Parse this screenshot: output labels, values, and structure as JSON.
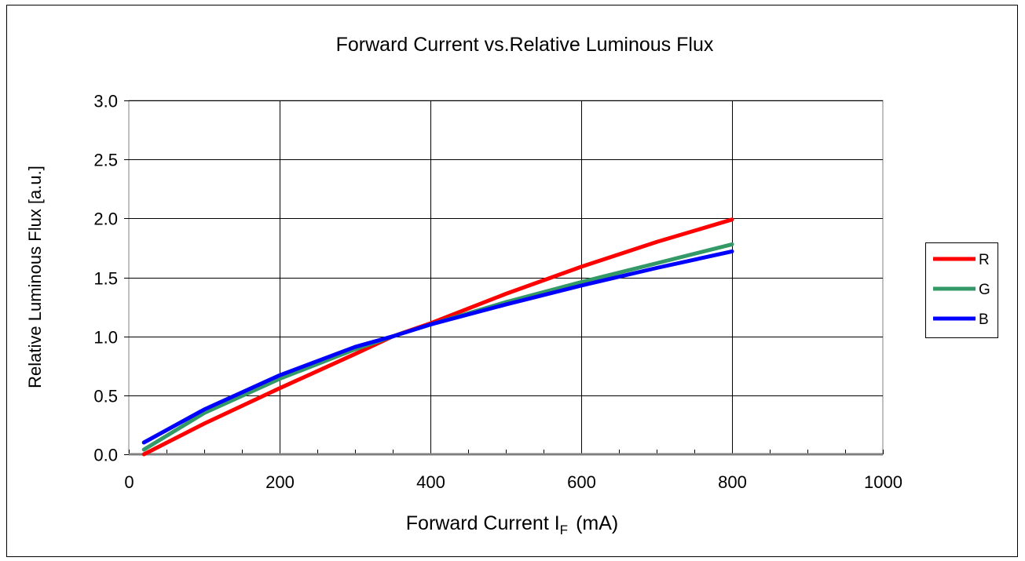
{
  "chart_data": {
    "type": "line",
    "title": "Forward Current vs.Relative Luminous Flux",
    "xlabel": {
      "main": "Forward Current I",
      "subscript": "F",
      "unit": "(mA)"
    },
    "ylabel": "Relative Luminous Flux [a.u.]",
    "xlim": [
      0,
      1000
    ],
    "ylim": [
      0,
      3.0
    ],
    "xticks": [
      0,
      200,
      400,
      600,
      800,
      1000
    ],
    "xtick_labels": [
      "0",
      "200",
      "400",
      "600",
      "800",
      "1000"
    ],
    "yticks": [
      0,
      0.5,
      1.0,
      1.5,
      2.0,
      2.5,
      3.0
    ],
    "ytick_labels": [
      "0.0",
      "0.5",
      "1.0",
      "1.5",
      "2.0",
      "2.5",
      "3.0"
    ],
    "x_minor_step": 50,
    "grid": true,
    "legend_position": "right",
    "series": [
      {
        "name": "R",
        "color": "#ff0000",
        "x": [
          20,
          100,
          200,
          300,
          350,
          400,
          500,
          600,
          700,
          800
        ],
        "y": [
          0.0,
          0.26,
          0.56,
          0.85,
          1.0,
          1.11,
          1.36,
          1.59,
          1.8,
          1.99
        ]
      },
      {
        "name": "G",
        "color": "#339966",
        "x": [
          20,
          100,
          200,
          300,
          350,
          400,
          500,
          600,
          700,
          800
        ],
        "y": [
          0.04,
          0.35,
          0.64,
          0.89,
          1.0,
          1.1,
          1.29,
          1.46,
          1.62,
          1.78
        ]
      },
      {
        "name": "B",
        "color": "#0000ff",
        "x": [
          20,
          100,
          200,
          300,
          350,
          400,
          500,
          600,
          700,
          800
        ],
        "y": [
          0.1,
          0.38,
          0.67,
          0.91,
          1.0,
          1.1,
          1.27,
          1.43,
          1.58,
          1.72
        ]
      }
    ]
  }
}
